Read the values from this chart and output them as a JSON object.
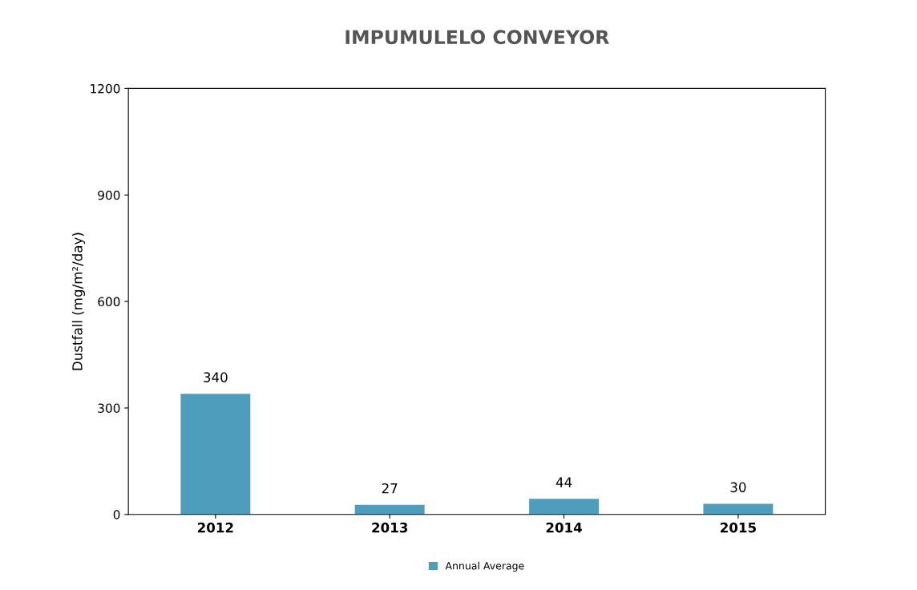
{
  "chart_data": {
    "type": "bar",
    "title": "IMPUMULELO CONVEYOR",
    "ylabel": "Dustfall (mg/m²/day)",
    "categories": [
      "2012",
      "2013",
      "2014",
      "2015"
    ],
    "series": [
      {
        "name": "Annual Average",
        "color": "#4f9dbd",
        "values": [
          340,
          27,
          44,
          30
        ]
      }
    ],
    "ylim": [
      0,
      1200
    ],
    "yticks": [
      0,
      300,
      600,
      900,
      1200
    ],
    "data_labels": true,
    "legend": "bottom",
    "grid": false
  }
}
